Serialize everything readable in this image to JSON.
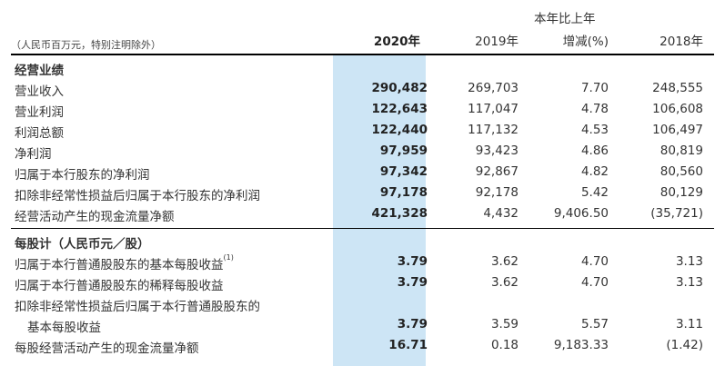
{
  "header": {
    "unit_note": "（人民币百万元，特别注明除外）",
    "col_2020": "2020年",
    "col_2019": "2019年",
    "col_change_line1": "本年比上年",
    "col_change_line2": "增减(%)",
    "col_2018": "2018年"
  },
  "sections": [
    {
      "title": "经营业绩",
      "rows": [
        {
          "label": "营业收入",
          "v2020": "290,482",
          "v2019": "269,703",
          "change": "7.70",
          "v2018": "248,555"
        },
        {
          "label": "营业利润",
          "v2020": "122,643",
          "v2019": "117,047",
          "change": "4.78",
          "v2018": "106,608"
        },
        {
          "label": "利润总额",
          "v2020": "122,440",
          "v2019": "117,132",
          "change": "4.53",
          "v2018": "106,497"
        },
        {
          "label": "净利润",
          "v2020": "97,959",
          "v2019": "93,423",
          "change": "4.86",
          "v2018": "80,819"
        },
        {
          "label": "归属于本行股东的净利润",
          "v2020": "97,342",
          "v2019": "92,867",
          "change": "4.82",
          "v2018": "80,560"
        },
        {
          "label": "扣除非经常性损益后归属于本行股东的净利润",
          "v2020": "97,178",
          "v2019": "92,178",
          "change": "5.42",
          "v2018": "80,129"
        },
        {
          "label": "经营活动产生的现金流量净额",
          "v2020": "421,328",
          "v2019": "4,432",
          "change": "9,406.50",
          "v2018": "(35,721)"
        }
      ]
    },
    {
      "title": "每股计（人民币元／股）",
      "rows": [
        {
          "label": "归属于本行普通股股东的基本每股收益",
          "note": "(1)",
          "v2020": "3.79",
          "v2019": "3.62",
          "change": "4.70",
          "v2018": "3.13"
        },
        {
          "label": "归属于本行普通股股东的稀释每股收益",
          "v2020": "3.79",
          "v2019": "3.62",
          "change": "4.70",
          "v2018": "3.13"
        },
        {
          "label": "扣除非经常性损益后归属于本行普通股股东的"
        },
        {
          "label": "基本每股收益",
          "v2020": "3.79",
          "v2019": "3.59",
          "change": "5.57",
          "v2018": "3.11"
        },
        {
          "label": "每股经营活动产生的现金流量净额",
          "v2020": "16.71",
          "v2019": "0.18",
          "change": "9,183.33",
          "v2018": "(1.42)"
        }
      ]
    }
  ]
}
